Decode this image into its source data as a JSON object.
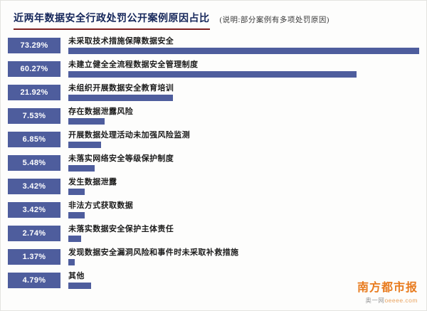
{
  "header": {
    "title": "近两年数据安全行政处罚公开案例原因占比",
    "note": "(说明:部分案例有多项处罚原因)"
  },
  "chart_data": {
    "type": "bar",
    "orientation": "horizontal",
    "title": "近两年数据安全行政处罚公开案例原因占比",
    "subtitle": "(说明:部分案例有多项处罚原因)",
    "unit": "%",
    "xlim": [
      0,
      73.29
    ],
    "max_value": 73.29,
    "grid": false,
    "legend": "none",
    "categories": [
      "未采取技术措施保障数据安全",
      "未建立健全全流程数据安全管理制度",
      "未组织开展数据安全教育培训",
      "存在数据泄露风险",
      "开展数据处理活动未加强风险监测",
      "未落实网络安全等级保护制度",
      "发生数据泄露",
      "非法方式获取数据",
      "未落实数据安全保护主体责任",
      "发现数据安全漏洞风险和事件时未采取补救措施",
      "其他"
    ],
    "values": [
      73.29,
      60.27,
      21.92,
      7.53,
      6.85,
      5.48,
      3.42,
      3.42,
      2.74,
      1.37,
      4.79
    ],
    "rows": [
      {
        "pct": "73.29%",
        "label": "未采取技术措施保障数据安全"
      },
      {
        "pct": "60.27%",
        "label": "未建立健全全流程数据安全管理制度"
      },
      {
        "pct": "21.92%",
        "label": "未组织开展数据安全教育培训"
      },
      {
        "pct": "7.53%",
        "label": "存在数据泄露风险"
      },
      {
        "pct": "6.85%",
        "label": "开展数据处理活动未加强风险监测"
      },
      {
        "pct": "5.48%",
        "label": "未落实网络安全等级保护制度"
      },
      {
        "pct": "3.42%",
        "label": "发生数据泄露"
      },
      {
        "pct": "3.42%",
        "label": "非法方式获取数据"
      },
      {
        "pct": "2.74%",
        "label": "未落实数据安全保护主体责任"
      },
      {
        "pct": "1.37%",
        "label": "发现数据安全漏洞风险和事件时未采取补救措施"
      },
      {
        "pct": "4.79%",
        "label": "其他"
      }
    ]
  },
  "footer": {
    "brand": "南方都市报",
    "site_prefix": "奥一网",
    "site_domain": "oeeee.com"
  },
  "colors": {
    "bar": "#4e5d9d",
    "badge": "#4e5d9d",
    "title_text": "#15265a",
    "title_underline": "#7e1f1f",
    "brand_orange": "#e87b1e"
  }
}
